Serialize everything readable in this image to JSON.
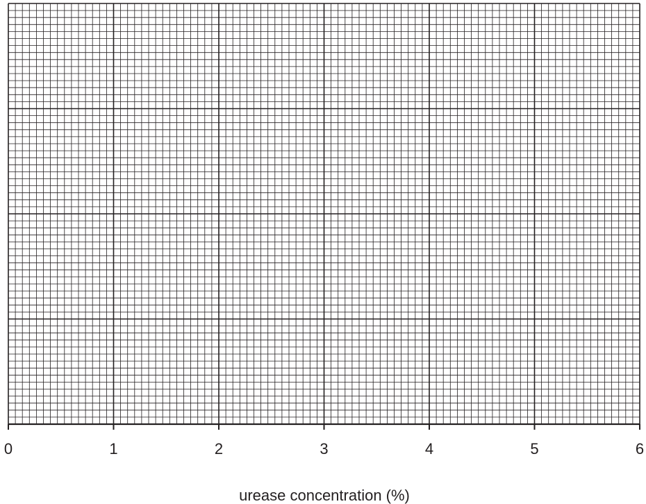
{
  "chart_data": {
    "type": "scatter",
    "title": "",
    "xlabel": "urease concentration (%)",
    "ylabel": "",
    "xlim": [
      0,
      6
    ],
    "x_ticks": [
      "0",
      "1",
      "2",
      "3",
      "4",
      "5",
      "6"
    ],
    "grid": true,
    "grid_minor_per_major_x": 15,
    "grid_major_rows": 4,
    "grid_minor_per_major_y": 15,
    "series": [],
    "colors": {
      "grid": "#231f20"
    }
  }
}
